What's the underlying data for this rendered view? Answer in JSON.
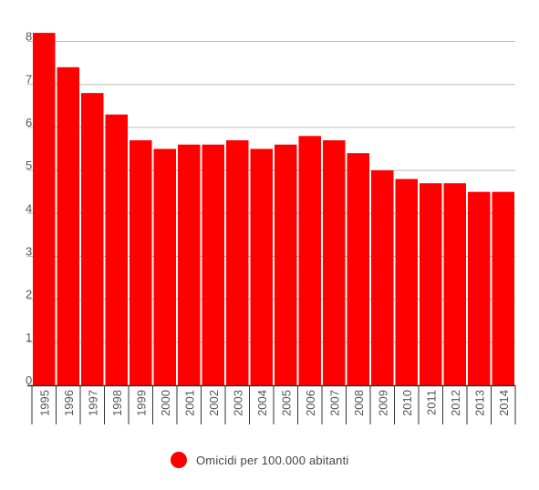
{
  "colors": {
    "bar": "#ff0000",
    "grid": "#bdbdbd",
    "axis": "#333333",
    "text": "#555555"
  },
  "chart_data": {
    "type": "bar",
    "title": "",
    "xlabel": "",
    "ylabel": "",
    "categories": [
      "1995",
      "1996",
      "1997",
      "1998",
      "1999",
      "2000",
      "2001",
      "2002",
      "2003",
      "2004",
      "2005",
      "2006",
      "2007",
      "2008",
      "2009",
      "2010",
      "2011",
      "2012",
      "2013",
      "2014"
    ],
    "series": [
      {
        "name": "Omicidi per 100.000 abitanti",
        "values": [
          8.2,
          7.4,
          6.8,
          6.3,
          5.7,
          5.5,
          5.6,
          5.6,
          5.7,
          5.5,
          5.6,
          5.8,
          5.7,
          5.4,
          5.0,
          4.8,
          4.7,
          4.7,
          4.5,
          4.5
        ]
      }
    ],
    "ylim": [
      0,
      8
    ],
    "yticks": [
      0,
      1,
      2,
      3,
      4,
      5,
      6,
      7,
      8
    ],
    "grid": true,
    "legend_position": "bottom",
    "x_tick_rotation": "vertical"
  }
}
